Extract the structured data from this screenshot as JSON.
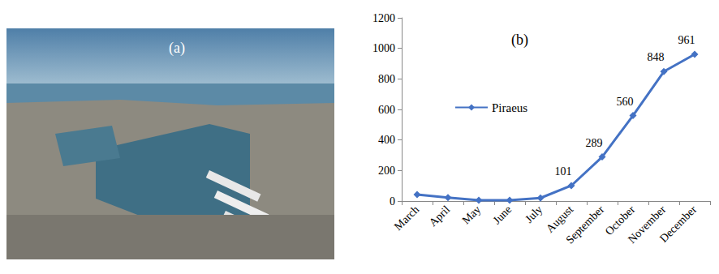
{
  "image": {
    "label": "(a)"
  },
  "chart_data": {
    "type": "line",
    "annotations": [
      "(b)"
    ],
    "categories": [
      "March",
      "April",
      "May",
      "June",
      "July",
      "August",
      "September",
      "October",
      "November",
      "December"
    ],
    "series": [
      {
        "name": "Piraeus",
        "color": "#4472c4",
        "marker": "diamond",
        "values": [
          42,
          22,
          5,
          5,
          20,
          101,
          289,
          560,
          848,
          961
        ],
        "value_labels": [
          null,
          null,
          null,
          null,
          null,
          "101",
          "289",
          "560",
          "848",
          "961"
        ]
      }
    ],
    "ylim": [
      0,
      1200
    ],
    "yticks": [
      0,
      200,
      400,
      600,
      800,
      1000,
      1200
    ],
    "grid": false,
    "legend": "left",
    "data_labels": true
  }
}
